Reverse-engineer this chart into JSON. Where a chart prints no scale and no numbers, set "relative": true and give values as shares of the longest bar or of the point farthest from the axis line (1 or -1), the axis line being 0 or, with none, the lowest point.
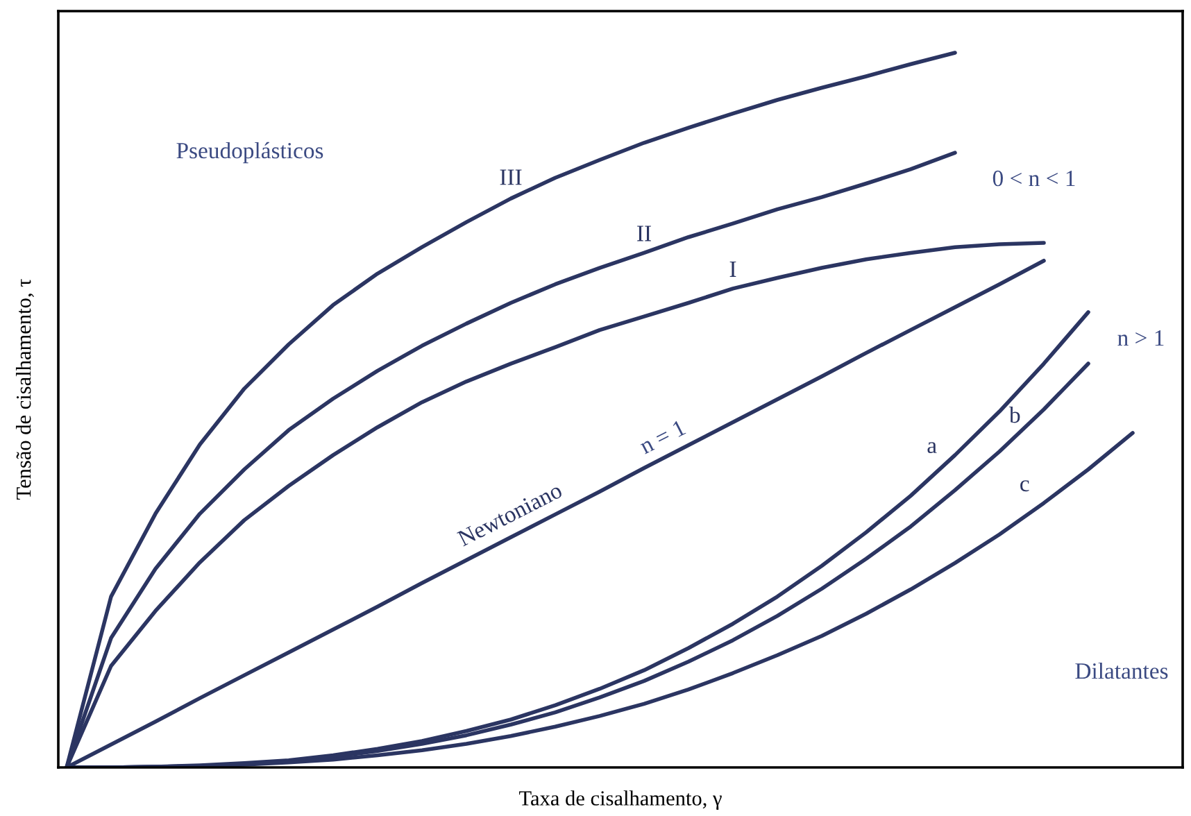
{
  "chart_data": {
    "type": "line",
    "relative": true,
    "xlabel": "Taxa de cisalhamento, γ",
    "ylabel": "Tensão de cisalhamento, τ",
    "categories": [
      null,
      null,
      null,
      null,
      null,
      null,
      null,
      null,
      null,
      null,
      null,
      null,
      null,
      null,
      null,
      null,
      null,
      null,
      null,
      null,
      null,
      null,
      null,
      null,
      null
    ],
    "series": [
      {
        "name": "III",
        "color": "#2b3562",
        "values": [
          0,
          0.239,
          0.355,
          0.452,
          0.53,
          0.592,
          0.647,
          0.691,
          0.728,
          0.763,
          0.796,
          0.825,
          0.85,
          0.874,
          0.895,
          0.915,
          0.934,
          0.951,
          0.967,
          0.984,
          1.0,
          null,
          null,
          null,
          null
        ]
      },
      {
        "name": "II",
        "color": "#2b3562",
        "values": [
          0,
          0.181,
          0.278,
          0.355,
          0.417,
          0.472,
          0.516,
          0.555,
          0.59,
          0.621,
          0.65,
          0.676,
          0.699,
          0.72,
          0.742,
          0.761,
          0.781,
          0.798,
          0.817,
          0.837,
          0.86,
          null,
          null,
          null,
          null
        ]
      },
      {
        "name": "I",
        "color": "#2b3562",
        "values": [
          0,
          0.142,
          0.219,
          0.287,
          0.346,
          0.394,
          0.437,
          0.476,
          0.511,
          0.54,
          0.565,
          0.588,
          0.612,
          0.631,
          0.65,
          0.67,
          0.685,
          0.699,
          0.711,
          0.72,
          0.728,
          0.732,
          0.734,
          null,
          null
        ]
      },
      {
        "name": "Newtoniano",
        "color": "#2b3562",
        "values": [
          0,
          0.032,
          0.064,
          0.097,
          0.129,
          0.161,
          0.193,
          0.225,
          0.258,
          0.29,
          0.322,
          0.354,
          0.386,
          0.419,
          0.451,
          0.483,
          0.515,
          0.547,
          0.58,
          0.612,
          0.644,
          0.676,
          0.709,
          null,
          null
        ]
      },
      {
        "name": "a",
        "color": "#2b3562",
        "values": [
          0,
          0.0,
          0.001,
          0.003,
          0.006,
          0.01,
          0.017,
          0.026,
          0.037,
          0.051,
          0.067,
          0.087,
          0.11,
          0.136,
          0.167,
          0.201,
          0.239,
          0.282,
          0.329,
          0.38,
          0.437,
          0.498,
          0.565,
          0.637,
          null
        ]
      },
      {
        "name": "b",
        "color": "#2b3562",
        "values": [
          0,
          0.0,
          0.001,
          0.002,
          0.005,
          0.009,
          0.015,
          0.023,
          0.033,
          0.045,
          0.06,
          0.077,
          0.098,
          0.121,
          0.148,
          0.178,
          0.212,
          0.25,
          0.292,
          0.337,
          0.388,
          0.442,
          0.501,
          0.565,
          null
        ]
      },
      {
        "name": "c",
        "color": "#2b3562",
        "values": [
          0,
          0.0,
          0.001,
          0.002,
          0.004,
          0.007,
          0.011,
          0.017,
          0.024,
          0.033,
          0.044,
          0.057,
          0.072,
          0.089,
          0.109,
          0.132,
          0.157,
          0.184,
          0.215,
          0.249,
          0.286,
          0.326,
          0.37,
          0.417,
          0.468
        ]
      }
    ],
    "annotations": [
      "Pseudoplásticos",
      "0 < n < 1",
      "n > 1",
      "Dilatantes",
      "n = 1"
    ],
    "legend": false,
    "marker": "none",
    "line_style": "solid"
  }
}
